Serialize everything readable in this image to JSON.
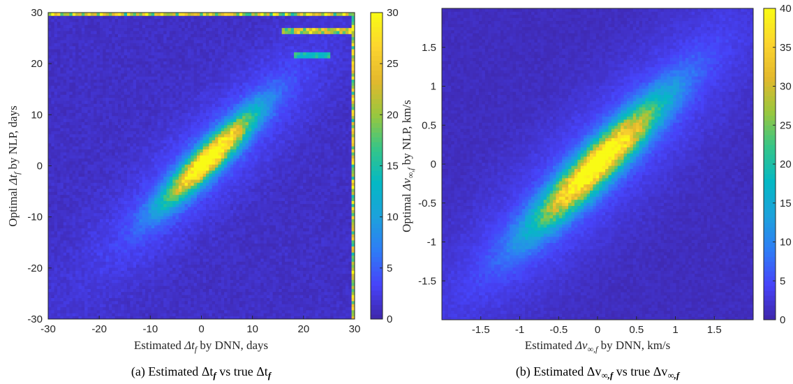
{
  "colors": {
    "background": "#ffffff",
    "axis": "#262626",
    "colormap": [
      "#3e26a8",
      "#4743f9",
      "#2f7cf6",
      "#1da1dc",
      "#04b8c4",
      "#35c589",
      "#99c73e",
      "#e3b82d",
      "#fcd52f",
      "#f9fb15"
    ]
  },
  "chart_data": [
    {
      "type": "heatmap",
      "panel": "a",
      "title": "",
      "xlabel": "Estimated Δt_f by DNN, days",
      "ylabel": "Optimal Δt_f by NLP, days",
      "caption": "(a)  Estimated Δt_f  vs true Δt_f",
      "xlim": [
        -30,
        30
      ],
      "ylim": [
        -30,
        30
      ],
      "xticks": [
        -30,
        -20,
        -10,
        0,
        10,
        20,
        30
      ],
      "yticks": [
        -30,
        -20,
        -10,
        0,
        10,
        20,
        30
      ],
      "colorbar": {
        "min": 0,
        "max": 30,
        "ticks": [
          0,
          5,
          10,
          15,
          20,
          25,
          30
        ]
      },
      "grid": false,
      "bins": 101,
      "diagonal_concentration": {
        "slope": 1.0,
        "peak_count": 30,
        "core_range": [
          -5,
          8
        ],
        "width": 2.5
      },
      "edge_accumulation": {
        "x": 30,
        "y": 30,
        "count": 30
      },
      "horizontal_streaks": [
        {
          "y": 26.5,
          "x_range": [
            16,
            30
          ],
          "count": 28
        },
        {
          "y": 21.5,
          "x_range": [
            18,
            25
          ],
          "count": 18
        }
      ],
      "background_count": 1
    },
    {
      "type": "heatmap",
      "panel": "b",
      "title": "",
      "xlabel": "Estimated Δv_∞,f by DNN, km/s",
      "ylabel": "Optimal Δv_∞,f by NLP, km/s",
      "caption": "(b)  Estimated Δv_∞,f  vs true Δv_∞,f",
      "xlim": [
        -2,
        2
      ],
      "ylim": [
        -2,
        2
      ],
      "xticks": [
        -1.5,
        -1,
        -0.5,
        0,
        0.5,
        1,
        1.5
      ],
      "yticks": [
        -1.5,
        -1,
        -0.5,
        0,
        0.5,
        1,
        1.5
      ],
      "colorbar": {
        "min": 0,
        "max": 40,
        "ticks": [
          0,
          5,
          10,
          15,
          20,
          25,
          30,
          35,
          40
        ]
      },
      "grid": false,
      "bins": 101,
      "diagonal_concentration": {
        "slope": 1.0,
        "peak_count": 40,
        "core_range": [
          -0.6,
          0.6
        ],
        "width": 0.22
      },
      "background_count": 1
    }
  ],
  "captions": {
    "a": {
      "prefix": "(a)  Estimated ",
      "q1": "Δt",
      "s1": "f",
      "mid": "  vs true ",
      "q2": "Δt",
      "s2": "f"
    },
    "b": {
      "prefix": "(b)  Estimated ",
      "q1": "Δv",
      "s1": "∞,f",
      "mid": "  vs true ",
      "q2": "Δv",
      "s2": "∞,f"
    }
  },
  "labels": {
    "a_x": {
      "pre": "Estimated ",
      "q": "Δt",
      "sub": "f",
      "post": " by DNN, days"
    },
    "a_y": {
      "pre": "Optimal ",
      "q": "Δt",
      "sub": "f",
      "post": " by NLP, days"
    },
    "b_x": {
      "pre": "Estimated ",
      "q": "Δv",
      "sub": "∞,f",
      "post": " by DNN, km/s"
    },
    "b_y": {
      "pre": "Optimal ",
      "q": "Δv",
      "sub": "∞,f",
      "post": " by NLP, km/s"
    }
  }
}
